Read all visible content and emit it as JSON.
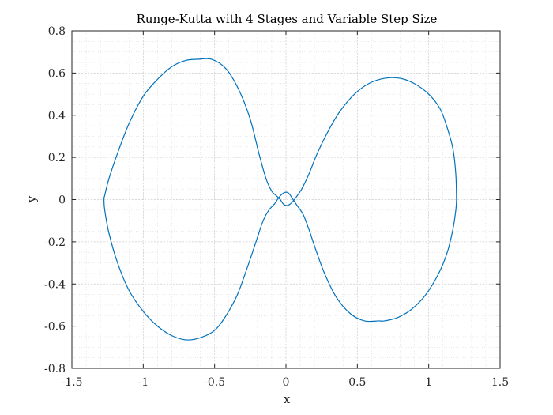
{
  "chart_data": {
    "type": "line",
    "title": "Runge-Kutta with 4 Stages and Variable Step Size",
    "xlabel": "x",
    "ylabel": "y",
    "xlim": [
      -1.5,
      1.5
    ],
    "ylim": [
      -0.8,
      0.8
    ],
    "grid": true,
    "minor_grid": true,
    "xticks": [
      -1.5,
      -1,
      -0.5,
      0,
      0.5,
      1,
      1.5
    ],
    "xtick_labels": [
      "-1.5",
      "-1",
      "-0.5",
      "0",
      "0.5",
      "1",
      "1.5"
    ],
    "yticks": [
      -0.8,
      -0.6,
      -0.4,
      -0.2,
      0,
      0.2,
      0.4,
      0.6,
      0.8
    ],
    "ytick_labels": [
      "-0.8",
      "-0.6",
      "-0.4",
      "-0.2",
      "0",
      "0.2",
      "0.4",
      "0.6",
      "0.8"
    ],
    "line_color": "#0072bd",
    "grid_color": "#dcdcdc",
    "series": [
      {
        "x": [
          1.195,
          1.19,
          1.17,
          1.13,
          1.08,
          1.0,
          0.9,
          0.8,
          0.69,
          0.58,
          0.48,
          0.38,
          0.3,
          0.22,
          0.16,
          0.11,
          0.07,
          0.04,
          0.02,
          0.0,
          -0.02,
          -0.04,
          -0.07,
          -0.1,
          -0.14,
          -0.19,
          -0.25,
          -0.33,
          -0.42,
          -0.52,
          -0.62,
          -0.7,
          -0.8,
          -0.9,
          -1.0,
          -1.1,
          -1.18,
          -1.24,
          -1.27,
          -1.275,
          -1.27,
          -1.24,
          -1.18,
          -1.1,
          -1.0,
          -0.9,
          -0.8,
          -0.7,
          -0.6,
          -0.5,
          -0.42,
          -0.34,
          -0.27,
          -0.21,
          -0.16,
          -0.12,
          -0.08,
          -0.05,
          -0.02,
          0.0,
          0.02,
          0.05,
          0.08,
          0.12,
          0.16,
          0.21,
          0.27,
          0.35,
          0.45,
          0.55,
          0.65,
          0.69,
          0.78,
          0.88,
          0.98,
          1.07,
          1.13,
          1.17,
          1.19,
          1.195
        ],
        "y": [
          0.0,
          0.12,
          0.24,
          0.34,
          0.43,
          0.5,
          0.55,
          0.575,
          0.575,
          0.55,
          0.5,
          0.42,
          0.33,
          0.22,
          0.12,
          0.05,
          0.01,
          -0.015,
          -0.025,
          -0.028,
          -0.02,
          0.0,
          0.02,
          0.04,
          0.1,
          0.22,
          0.38,
          0.52,
          0.62,
          0.665,
          0.665,
          0.66,
          0.63,
          0.57,
          0.49,
          0.36,
          0.22,
          0.1,
          0.02,
          0.0,
          -0.05,
          -0.16,
          -0.3,
          -0.43,
          -0.53,
          -0.6,
          -0.645,
          -0.665,
          -0.655,
          -0.62,
          -0.55,
          -0.45,
          -0.32,
          -0.2,
          -0.1,
          -0.05,
          -0.02,
          0.01,
          0.03,
          0.035,
          0.03,
          0.0,
          -0.03,
          -0.07,
          -0.14,
          -0.24,
          -0.35,
          -0.46,
          -0.54,
          -0.575,
          -0.575,
          -0.575,
          -0.56,
          -0.52,
          -0.45,
          -0.35,
          -0.25,
          -0.14,
          -0.05,
          0.0
        ]
      }
    ]
  }
}
